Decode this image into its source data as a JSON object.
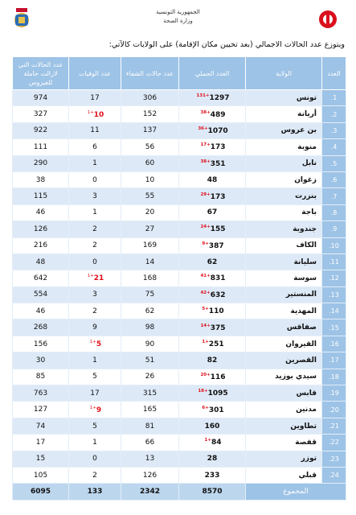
{
  "header": {
    "line1": "الجمهورية التونسية",
    "line2": "وزارة الصحة"
  },
  "intro": "ويتوزع عدد الحالات الاجمالي (بعد تحيين مكان الإقامة) على الولايات كالآتي:",
  "table": {
    "headers": [
      "العدد",
      "الولاية",
      "العدد الجملي",
      "عدد حالات الشفاء",
      "عدد الوفيات",
      "عدد الحالات التي لازالت حاملة للفيروس"
    ],
    "rows": [
      {
        "n": "1.",
        "gov": "تونس",
        "total": 1297,
        "total_new": "131+",
        "recovered": 306,
        "deaths": 17,
        "active": 974
      },
      {
        "n": "2.",
        "gov": "أريانة",
        "total": 489,
        "total_new": "38+",
        "recovered": 152,
        "deaths": 10,
        "deaths_new": "1+",
        "active": 327
      },
      {
        "n": "3.",
        "gov": "بن عروس",
        "total": 1070,
        "total_new": "36+",
        "recovered": 137,
        "deaths": 11,
        "active": 922
      },
      {
        "n": "4.",
        "gov": "منوبة",
        "total": 173,
        "total_new": "17+",
        "recovered": 56,
        "deaths": 6,
        "active": 111
      },
      {
        "n": "5.",
        "gov": "نابل",
        "total": 351,
        "total_new": "38+",
        "recovered": 60,
        "deaths": 1,
        "active": 290
      },
      {
        "n": "6.",
        "gov": "زغوان",
        "total": 48,
        "recovered": 10,
        "deaths": 0,
        "active": 38
      },
      {
        "n": "7.",
        "gov": "بنزرت",
        "total": 173,
        "total_new": "29+",
        "recovered": 55,
        "deaths": 3,
        "active": 115
      },
      {
        "n": "8.",
        "gov": "باجة",
        "total": 67,
        "recovered": 20,
        "deaths": 1,
        "active": 46
      },
      {
        "n": "9.",
        "gov": "جندوبة",
        "total": 155,
        "total_new": "24+",
        "recovered": 27,
        "deaths": 2,
        "active": 126
      },
      {
        "n": "10.",
        "gov": "الكاف",
        "total": 387,
        "total_new": "9+",
        "recovered": 169,
        "deaths": 2,
        "active": 216
      },
      {
        "n": "11.",
        "gov": "سليانة",
        "total": 62,
        "recovered": 14,
        "deaths": 0,
        "active": 48
      },
      {
        "n": "12.",
        "gov": "سوسة",
        "total": 831,
        "total_new": "41+",
        "recovered": 168,
        "deaths": 21,
        "deaths_new": "1+",
        "active": 642
      },
      {
        "n": "13.",
        "gov": "المنستير",
        "total": 632,
        "total_new": "42+",
        "recovered": 75,
        "deaths": 3,
        "active": 554
      },
      {
        "n": "14.",
        "gov": "المهدية",
        "total": 110,
        "total_new": "5+",
        "recovered": 62,
        "deaths": 2,
        "active": 46
      },
      {
        "n": "15.",
        "gov": "صفاقس",
        "total": 375,
        "total_new": "14+",
        "recovered": 98,
        "deaths": 9,
        "active": 268
      },
      {
        "n": "16.",
        "gov": "القيروان",
        "total": 251,
        "total_new": "1+",
        "recovered": 90,
        "deaths": 5,
        "deaths_new": "1+",
        "active": 156
      },
      {
        "n": "17.",
        "gov": "القصرين",
        "total": 82,
        "recovered": 51,
        "deaths": 1,
        "active": 30
      },
      {
        "n": "18.",
        "gov": "سيدي بوزيد",
        "total": 116,
        "total_new": "20+",
        "recovered": 26,
        "deaths": 5,
        "active": 85
      },
      {
        "n": "19.",
        "gov": "قابس",
        "total": 1095,
        "total_new": "18+",
        "recovered": 315,
        "deaths": 17,
        "active": 763
      },
      {
        "n": "20.",
        "gov": "مدنين",
        "total": 301,
        "total_new": "6+",
        "recovered": 165,
        "deaths": 9,
        "deaths_new": "1+",
        "active": 127
      },
      {
        "n": "21.",
        "gov": "تطاوين",
        "total": 160,
        "recovered": 81,
        "deaths": 5,
        "active": 74
      },
      {
        "n": "22.",
        "gov": "قفصة",
        "total": 84,
        "total_new": "1+",
        "recovered": 66,
        "deaths": 1,
        "active": 17
      },
      {
        "n": "23.",
        "gov": "توزر",
        "total": 28,
        "recovered": 13,
        "deaths": 0,
        "active": 15
      },
      {
        "n": "24.",
        "gov": "قبلي",
        "total": 233,
        "recovered": 126,
        "deaths": 2,
        "active": 105
      }
    ],
    "sum": {
      "label": "المجموع",
      "total": 8570,
      "recovered": 2342,
      "deaths": 133,
      "active": 6095
    }
  }
}
